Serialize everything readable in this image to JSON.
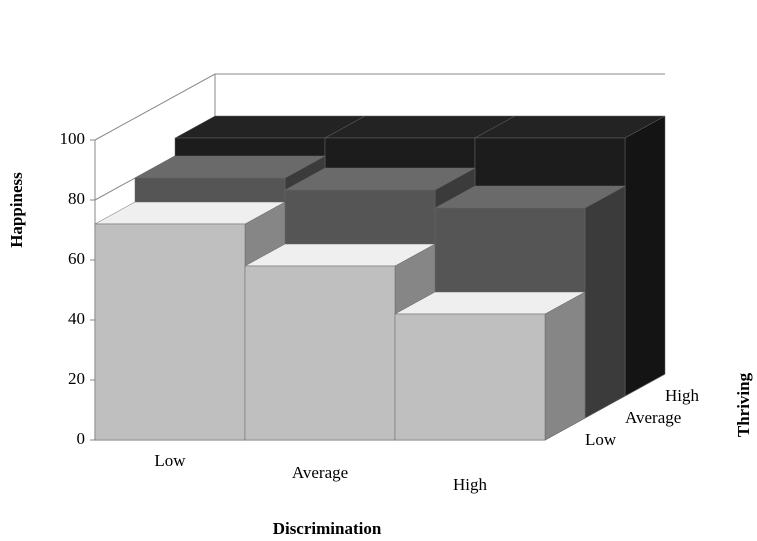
{
  "chart_data": {
    "type": "bar3d",
    "y_label": "Happiness",
    "x_label": "Discrimination",
    "z_label": "Thriving",
    "categories": [
      "Low",
      "Average",
      "High"
    ],
    "series": [
      {
        "name": "Low",
        "color": "#bfbfbf",
        "values": [
          72,
          58,
          42
        ]
      },
      {
        "name": "Average",
        "color": "#555555",
        "values": [
          80,
          76,
          70
        ]
      },
      {
        "name": "High",
        "color": "#1c1c1c",
        "values": [
          86,
          86,
          86
        ]
      }
    ],
    "ylim": [
      0,
      100
    ],
    "yticks": [
      0,
      20,
      40,
      60,
      80,
      100
    ],
    "grid": true
  }
}
